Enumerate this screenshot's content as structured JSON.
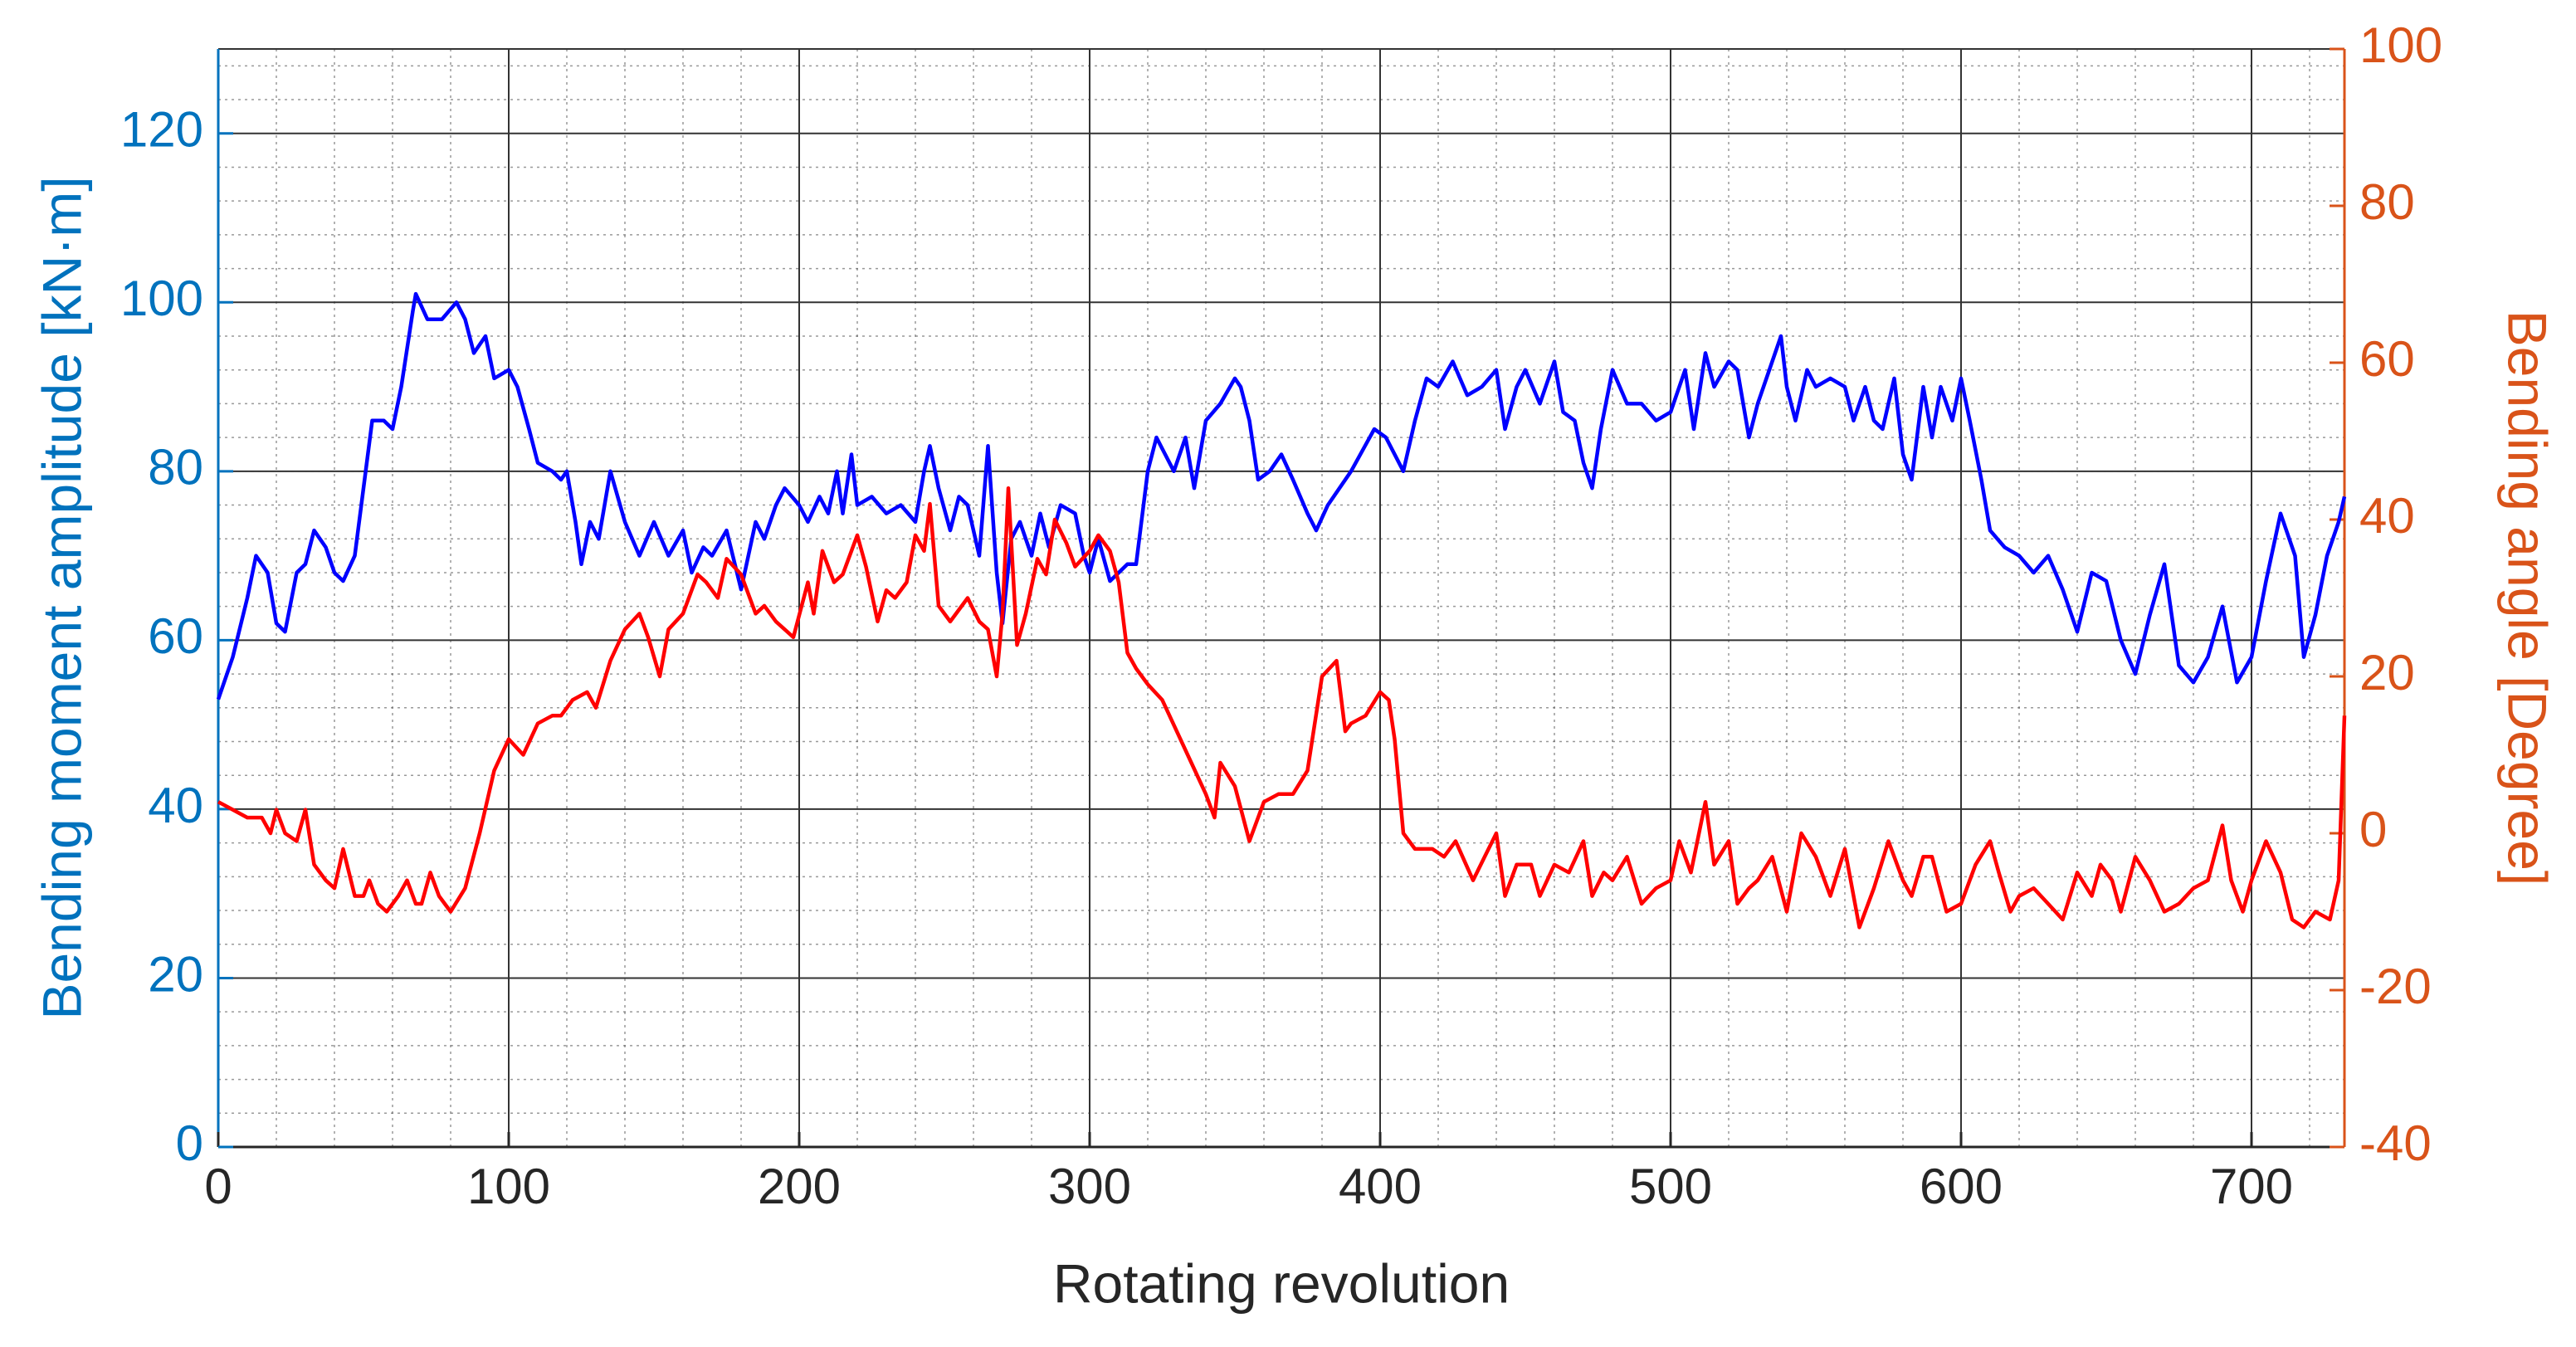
{
  "chart_data": {
    "type": "line",
    "xlabel": "Rotating revolution",
    "ylabel": "Bending moment amplitude [kN·m]",
    "y2label": "Bending angle [Degree]",
    "xlim": [
      0,
      732
    ],
    "xticks": [
      0,
      100,
      200,
      300,
      400,
      500,
      600,
      700
    ],
    "ylim": [
      0,
      130
    ],
    "yticks": [
      0,
      20,
      40,
      60,
      80,
      100,
      120
    ],
    "y2lim": [
      -40,
      100
    ],
    "y2ticks": [
      -40,
      -20,
      0,
      20,
      40,
      60,
      80,
      100
    ],
    "grid": true,
    "minor_grid": true,
    "ylabel_color": "#0072bd",
    "y2label_color": "#d95319",
    "series": [
      {
        "color": "#0000ff",
        "x": [
          0,
          5,
          10,
          13,
          17,
          20,
          23,
          27,
          30,
          33,
          37,
          40,
          43,
          47,
          50,
          53,
          57,
          60,
          63,
          67,
          68,
          72,
          77,
          82,
          85,
          88,
          92,
          95,
          100,
          103,
          107,
          110,
          115,
          118,
          120,
          123,
          125,
          128,
          131,
          135,
          140,
          145,
          150,
          155,
          160,
          163,
          167,
          170,
          175,
          180,
          185,
          188,
          192,
          195,
          200,
          203,
          207,
          210,
          213,
          215,
          218,
          220,
          225,
          230,
          235,
          240,
          243,
          245,
          248,
          252,
          255,
          258,
          262,
          265,
          268,
          270,
          273,
          276,
          280,
          283,
          286,
          290,
          295,
          298,
          300,
          303,
          307,
          310,
          313,
          316,
          320,
          323,
          326,
          329,
          333,
          336,
          340,
          345,
          350,
          352,
          355,
          358,
          362,
          366,
          370,
          375,
          378,
          382,
          390,
          398,
          402,
          408,
          412,
          416,
          420,
          425,
          430,
          435,
          440,
          443,
          447,
          450,
          455,
          460,
          463,
          467,
          470,
          473,
          476,
          480,
          485,
          490,
          495,
          500,
          505,
          508,
          512,
          515,
          520,
          523,
          527,
          530,
          535,
          538,
          540,
          543,
          547,
          550,
          555,
          560,
          563,
          567,
          570,
          573,
          577,
          580,
          583,
          587,
          590,
          593,
          597,
          600,
          603,
          607,
          610,
          615,
          620,
          625,
          630,
          635,
          640,
          645,
          650,
          655,
          660,
          665,
          670,
          675,
          680,
          685,
          690,
          695,
          700,
          705,
          710,
          715,
          718,
          722,
          726,
          730,
          732
        ],
        "values": [
          53,
          58,
          65,
          70,
          68,
          62,
          61,
          68,
          69,
          73,
          71,
          68,
          67,
          70,
          78,
          86,
          86,
          85,
          90,
          99,
          101,
          98,
          98,
          100,
          98,
          94,
          96,
          91,
          92,
          90,
          85,
          81,
          80,
          79,
          80,
          74,
          69,
          74,
          72,
          80,
          74,
          70,
          74,
          70,
          73,
          68,
          71,
          70,
          73,
          66,
          74,
          72,
          76,
          78,
          76,
          74,
          77,
          75,
          80,
          75,
          82,
          76,
          77,
          75,
          76,
          74,
          80,
          83,
          78,
          73,
          77,
          76,
          70,
          83,
          68,
          62,
          72,
          74,
          70,
          75,
          71,
          76,
          75,
          70,
          68,
          72,
          67,
          68,
          69,
          69,
          80,
          84,
          82,
          80,
          84,
          78,
          86,
          88,
          91,
          90,
          86,
          79,
          80,
          82,
          79,
          75,
          73,
          76,
          80,
          85,
          84,
          80,
          86,
          91,
          90,
          93,
          89,
          90,
          92,
          85,
          90,
          92,
          88,
          93,
          87,
          86,
          81,
          78,
          85,
          92,
          88,
          88,
          86,
          87,
          92,
          85,
          94,
          90,
          93,
          92,
          84,
          88,
          93,
          96,
          90,
          86,
          92,
          90,
          91,
          90,
          86,
          90,
          86,
          85,
          91,
          82,
          79,
          90,
          84,
          90,
          86,
          91,
          86,
          79,
          73,
          71,
          70,
          68,
          70,
          66,
          61,
          68,
          67,
          60,
          56,
          63,
          69,
          57,
          55,
          58,
          64,
          55,
          58,
          67,
          75,
          70,
          58,
          63,
          70,
          74,
          77
        ]
      },
      {
        "color": "#ff0000",
        "axis": "y2",
        "x": [
          0,
          5,
          10,
          15,
          18,
          20,
          23,
          27,
          30,
          33,
          37,
          40,
          43,
          47,
          50,
          52,
          55,
          58,
          62,
          65,
          68,
          70,
          73,
          76,
          80,
          85,
          90,
          95,
          100,
          105,
          110,
          115,
          118,
          122,
          127,
          130,
          135,
          140,
          145,
          148,
          152,
          155,
          160,
          165,
          168,
          172,
          175,
          180,
          185,
          188,
          192,
          198,
          203,
          205,
          208,
          212,
          215,
          220,
          223,
          227,
          230,
          233,
          237,
          240,
          243,
          245,
          248,
          252,
          258,
          262,
          265,
          268,
          270,
          272,
          275,
          278,
          282,
          285,
          288,
          292,
          295,
          300,
          303,
          307,
          310,
          313,
          316,
          320,
          325,
          330,
          335,
          340,
          343,
          345,
          350,
          355,
          360,
          365,
          370,
          375,
          380,
          385,
          388,
          390,
          395,
          400,
          403,
          405,
          408,
          412,
          418,
          422,
          426,
          432,
          436,
          440,
          443,
          447,
          452,
          455,
          460,
          465,
          470,
          473,
          477,
          480,
          485,
          490,
          495,
          500,
          503,
          507,
          512,
          515,
          520,
          523,
          527,
          530,
          535,
          540,
          545,
          550,
          555,
          560,
          565,
          570,
          575,
          580,
          583,
          587,
          590,
          595,
          600,
          605,
          610,
          613,
          617,
          620,
          625,
          630,
          635,
          640,
          645,
          648,
          652,
          655,
          660,
          665,
          670,
          675,
          680,
          685,
          690,
          693,
          697,
          700,
          705,
          710,
          714,
          718,
          722,
          727,
          730,
          732
        ],
        "values": [
          4,
          3,
          2,
          2,
          0,
          3,
          0,
          -1,
          3,
          -4,
          -6,
          -7,
          -2,
          -8,
          -8,
          -6,
          -9,
          -10,
          -8,
          -6,
          -9,
          -9,
          -5,
          -8,
          -10,
          -7,
          0,
          8,
          12,
          10,
          14,
          15,
          15,
          17,
          18,
          16,
          22,
          26,
          28,
          25,
          20,
          26,
          28,
          33,
          32,
          30,
          35,
          33,
          28,
          29,
          27,
          25,
          32,
          28,
          36,
          32,
          33,
          38,
          34,
          27,
          31,
          30,
          32,
          38,
          36,
          42,
          29,
          27,
          30,
          27,
          26,
          20,
          28,
          44,
          24,
          28,
          35,
          33,
          40,
          37,
          34,
          36,
          38,
          36,
          32,
          23,
          21,
          19,
          17,
          13,
          9,
          5,
          2,
          9,
          6,
          -1,
          4,
          5,
          5,
          8,
          20,
          22,
          13,
          14,
          15,
          18,
          17,
          12,
          0,
          -2,
          -2,
          -3,
          -1,
          -6,
          -3,
          0,
          -8,
          -4,
          -4,
          -8,
          -4,
          -5,
          -1,
          -8,
          -5,
          -6,
          -3,
          -9,
          -7,
          -6,
          -1,
          -5,
          4,
          -4,
          -1,
          -9,
          -7,
          -6,
          -3,
          -10,
          0,
          -3,
          -8,
          -2,
          -12,
          -7,
          -1,
          -6,
          -8,
          -3,
          -3,
          -10,
          -9,
          -4,
          -1,
          -5,
          -10,
          -8,
          -7,
          -9,
          -11,
          -5,
          -8,
          -4,
          -6,
          -10,
          -3,
          -6,
          -10,
          -9,
          -7,
          -6,
          1,
          -6,
          -10,
          -6,
          -1,
          -5,
          -11,
          -12,
          -10,
          -11,
          -6,
          15
        ]
      }
    ]
  }
}
